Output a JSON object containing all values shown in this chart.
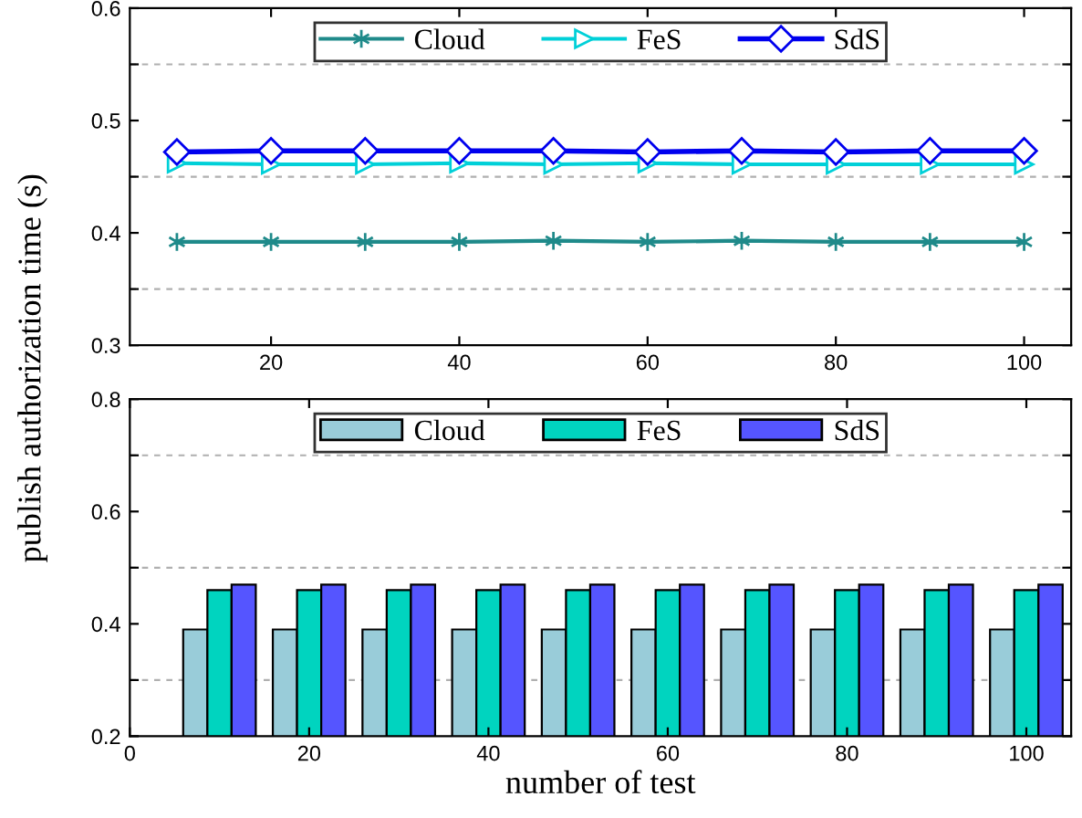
{
  "chart_data": [
    {
      "type": "line",
      "ylabel": "publish authorization time (s)",
      "x": [
        10,
        20,
        30,
        40,
        50,
        60,
        70,
        80,
        90,
        100
      ],
      "series": [
        {
          "name": "Cloud",
          "color": "#1f8a8a",
          "marker": "cross",
          "values": [
            0.392,
            0.392,
            0.392,
            0.392,
            0.393,
            0.392,
            0.393,
            0.392,
            0.392,
            0.392
          ]
        },
        {
          "name": "FeS",
          "color": "#00d0d8",
          "marker": "triangle",
          "values": [
            0.462,
            0.461,
            0.461,
            0.462,
            0.461,
            0.462,
            0.461,
            0.461,
            0.461,
            0.461
          ]
        },
        {
          "name": "SdS",
          "color": "#0000ee",
          "marker": "diamond",
          "values": [
            0.472,
            0.473,
            0.473,
            0.473,
            0.473,
            0.472,
            0.473,
            0.472,
            0.473,
            0.473
          ]
        }
      ],
      "xlim": [
        5,
        105
      ],
      "xticks": [
        20,
        40,
        60,
        80,
        100
      ],
      "ylim": [
        0.3,
        0.6
      ],
      "yticks": [
        0.3,
        {
          "value": 0.35,
          "label": null
        },
        0.4,
        {
          "value": 0.45,
          "label": null
        },
        0.5,
        {
          "value": 0.55,
          "label": null
        },
        0.6
      ],
      "grid": "y",
      "legend": "top",
      "line_style": "solid"
    },
    {
      "type": "bar",
      "xlabel": "number of test",
      "x": [
        10,
        20,
        30,
        40,
        50,
        60,
        70,
        80,
        90,
        100
      ],
      "series": [
        {
          "name": "Cloud",
          "color": "#99ccd9",
          "values": [
            0.39,
            0.39,
            0.39,
            0.39,
            0.39,
            0.39,
            0.39,
            0.39,
            0.39,
            0.39
          ]
        },
        {
          "name": "FeS",
          "color": "#00d4bf",
          "values": [
            0.46,
            0.46,
            0.46,
            0.46,
            0.46,
            0.46,
            0.46,
            0.46,
            0.46,
            0.46
          ]
        },
        {
          "name": "SdS",
          "color": "#5555ff",
          "values": [
            0.47,
            0.47,
            0.47,
            0.47,
            0.47,
            0.47,
            0.47,
            0.47,
            0.47,
            0.47
          ]
        }
      ],
      "xlim": [
        0,
        105
      ],
      "xticks": [
        0,
        20,
        40,
        60,
        80,
        100
      ],
      "ylim": [
        0.2,
        0.8
      ],
      "yticks": [
        0.2,
        {
          "value": 0.3,
          "label": null
        },
        0.4,
        {
          "value": 0.5,
          "label": null
        },
        0.6,
        {
          "value": 0.7,
          "label": null
        },
        0.8
      ],
      "grid": "y",
      "legend": "top"
    }
  ]
}
